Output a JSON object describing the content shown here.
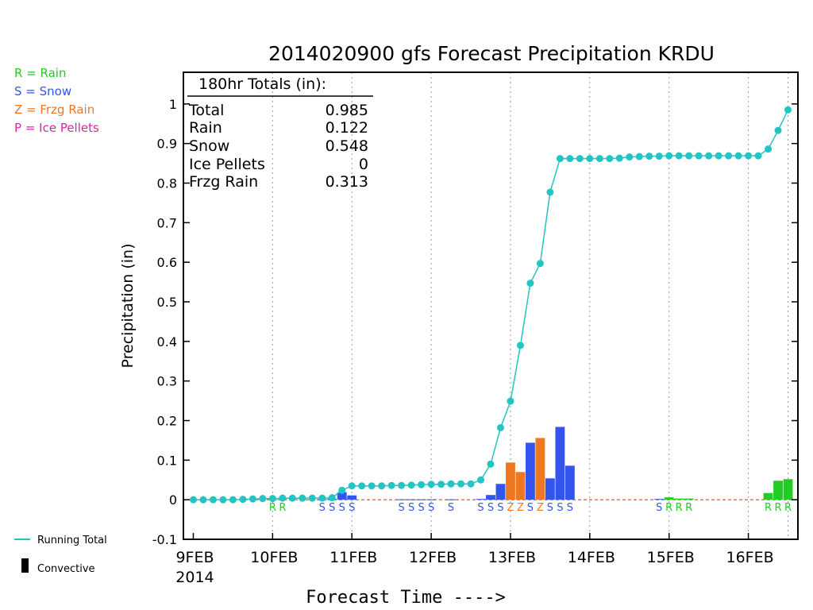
{
  "chart_data": {
    "type": "bar",
    "title": "2014020900 gfs Forecast Precipitation KRDU",
    "xlabel": "Forecast Time ---->",
    "ylabel": "Precipitation (in)",
    "ylim": [
      -0.1,
      1.08
    ],
    "yticks": [
      -0.1,
      0,
      0.1,
      0.2,
      0.3,
      0.4,
      0.5,
      0.6,
      0.7,
      0.8,
      0.9,
      1
    ],
    "ytick_labels": [
      "-0.1",
      "0",
      "0.1",
      "0.2",
      "0.3",
      "0.4",
      "0.5",
      "0.6",
      "0.7",
      "0.8",
      "0.9",
      "1"
    ],
    "xlim_hours": [
      -3,
      183
    ],
    "xticks": [
      {
        "label": "9FEB",
        "sublabel": "2014",
        "hour": 0
      },
      {
        "label": "10FEB",
        "hour": 24
      },
      {
        "label": "11FEB",
        "hour": 48
      },
      {
        "label": "12FEB",
        "hour": 72
      },
      {
        "label": "13FEB",
        "hour": 96
      },
      {
        "label": "14FEB",
        "hour": 120
      },
      {
        "label": "15FEB",
        "hour": 144
      },
      {
        "label": "16FEB",
        "hour": 168
      }
    ],
    "grid": "vertical dotted",
    "totals_box": {
      "header": "180hr Totals (in):",
      "rows": [
        {
          "label": "Total",
          "value": "0.985"
        },
        {
          "label": "Rain",
          "value": "0.122"
        },
        {
          "label": "Snow",
          "value": "0.548"
        },
        {
          "label": "Ice Pellets",
          "value": "0"
        },
        {
          "label": "Frzg Rain",
          "value": "0.313"
        }
      ]
    },
    "legend_types": [
      {
        "code": "R",
        "text": "R = Rain",
        "color": "#22cc22"
      },
      {
        "code": "S",
        "text": "S = Snow",
        "color": "#3355ee"
      },
      {
        "code": "Z",
        "text": "Z = Frzg Rain",
        "color": "#ee7722"
      },
      {
        "code": "P",
        "text": "P = Ice Pellets",
        "color": "#dd22aa"
      }
    ],
    "legend_lines": [
      {
        "text": "Running Total",
        "color": "#22c4c4"
      },
      {
        "text": "Convective",
        "color": "#000000"
      }
    ],
    "running_total": {
      "name": "Running Total",
      "hours": [
        0,
        3,
        6,
        9,
        12,
        15,
        18,
        21,
        24,
        27,
        30,
        33,
        36,
        39,
        42,
        45,
        48,
        51,
        54,
        57,
        60,
        63,
        66,
        69,
        72,
        75,
        78,
        81,
        84,
        87,
        90,
        93,
        96,
        99,
        102,
        105,
        108,
        111,
        114,
        117,
        120,
        123,
        126,
        129,
        132,
        135,
        138,
        141,
        144,
        147,
        150,
        153,
        156,
        159,
        162,
        165,
        168,
        171,
        174,
        177,
        180
      ],
      "values": [
        0.0,
        0.0,
        0.0,
        0.0,
        0.0,
        0.001,
        0.002,
        0.003,
        0.003,
        0.004,
        0.004,
        0.004,
        0.004,
        0.004,
        0.005,
        0.024,
        0.035,
        0.035,
        0.035,
        0.035,
        0.036,
        0.036,
        0.037,
        0.038,
        0.039,
        0.039,
        0.04,
        0.04,
        0.04,
        0.05,
        0.09,
        0.182,
        0.249,
        0.39,
        0.547,
        0.597,
        0.777,
        0.862,
        0.862,
        0.862,
        0.862,
        0.862,
        0.862,
        0.863,
        0.866,
        0.867,
        0.868,
        0.868,
        0.869,
        0.869,
        0.869,
        0.869,
        0.869,
        0.869,
        0.869,
        0.869,
        0.869,
        0.869,
        0.886,
        0.933,
        0.985
      ]
    },
    "bars": [
      {
        "hour": 24,
        "value": 0.001,
        "type": "R"
      },
      {
        "hour": 27,
        "value": 0.001,
        "type": "R"
      },
      {
        "hour": 39,
        "value": 0.001,
        "type": "S"
      },
      {
        "hour": 42,
        "value": 0.002,
        "type": "S"
      },
      {
        "hour": 45,
        "value": 0.019,
        "type": "S"
      },
      {
        "hour": 48,
        "value": 0.011,
        "type": "S"
      },
      {
        "hour": 63,
        "value": 0.001,
        "type": "S"
      },
      {
        "hour": 66,
        "value": 0.001,
        "type": "S"
      },
      {
        "hour": 69,
        "value": 0.001,
        "type": "S"
      },
      {
        "hour": 72,
        "value": 0.001,
        "type": "S"
      },
      {
        "hour": 78,
        "value": 0.001,
        "type": "S"
      },
      {
        "hour": 87,
        "value": 0.002,
        "type": "S"
      },
      {
        "hour": 90,
        "value": 0.012,
        "type": "S"
      },
      {
        "hour": 93,
        "value": 0.04,
        "type": "S"
      },
      {
        "hour": 96,
        "value": 0.094,
        "type": "Z"
      },
      {
        "hour": 99,
        "value": 0.07,
        "type": "Z"
      },
      {
        "hour": 102,
        "value": 0.144,
        "type": "S"
      },
      {
        "hour": 105,
        "value": 0.156,
        "type": "Z"
      },
      {
        "hour": 108,
        "value": 0.054,
        "type": "S"
      },
      {
        "hour": 111,
        "value": 0.184,
        "type": "S"
      },
      {
        "hour": 114,
        "value": 0.086,
        "type": "S"
      },
      {
        "hour": 141,
        "value": 0.002,
        "type": "S"
      },
      {
        "hour": 144,
        "value": 0.006,
        "type": "R"
      },
      {
        "hour": 147,
        "value": 0.003,
        "type": "R"
      },
      {
        "hour": 150,
        "value": 0.003,
        "type": "R"
      },
      {
        "hour": 174,
        "value": 0.017,
        "type": "R"
      },
      {
        "hour": 177,
        "value": 0.048,
        "type": "R"
      },
      {
        "hour": 180,
        "value": 0.052,
        "type": "R"
      }
    ],
    "type_letters": [
      {
        "hour": 24,
        "code": "R"
      },
      {
        "hour": 27,
        "code": "R"
      },
      {
        "hour": 39,
        "code": "S"
      },
      {
        "hour": 42,
        "code": "S"
      },
      {
        "hour": 45,
        "code": "S"
      },
      {
        "hour": 48,
        "code": "S"
      },
      {
        "hour": 63,
        "code": "S"
      },
      {
        "hour": 66,
        "code": "S"
      },
      {
        "hour": 69,
        "code": "S"
      },
      {
        "hour": 72,
        "code": "S"
      },
      {
        "hour": 78,
        "code": "S"
      },
      {
        "hour": 87,
        "code": "S"
      },
      {
        "hour": 90,
        "code": "S"
      },
      {
        "hour": 93,
        "code": "S"
      },
      {
        "hour": 96,
        "code": "Z"
      },
      {
        "hour": 99,
        "code": "Z"
      },
      {
        "hour": 102,
        "code": "S"
      },
      {
        "hour": 105,
        "code": "Z"
      },
      {
        "hour": 108,
        "code": "S"
      },
      {
        "hour": 111,
        "code": "S"
      },
      {
        "hour": 114,
        "code": "S"
      },
      {
        "hour": 141,
        "code": "S"
      },
      {
        "hour": 144,
        "code": "R"
      },
      {
        "hour": 147,
        "code": "R"
      },
      {
        "hour": 150,
        "code": "R"
      },
      {
        "hour": 174,
        "code": "R"
      },
      {
        "hour": 177,
        "code": "R"
      },
      {
        "hour": 180,
        "code": "R"
      }
    ]
  },
  "colors": {
    "rain": "#22cc22",
    "snow": "#3355ee",
    "frzg_rain": "#ee7722",
    "ice_pellets": "#dd22aa",
    "running_total": "#22c4c4",
    "convective": "#000000",
    "axis": "#000000",
    "grid": "#999999"
  }
}
